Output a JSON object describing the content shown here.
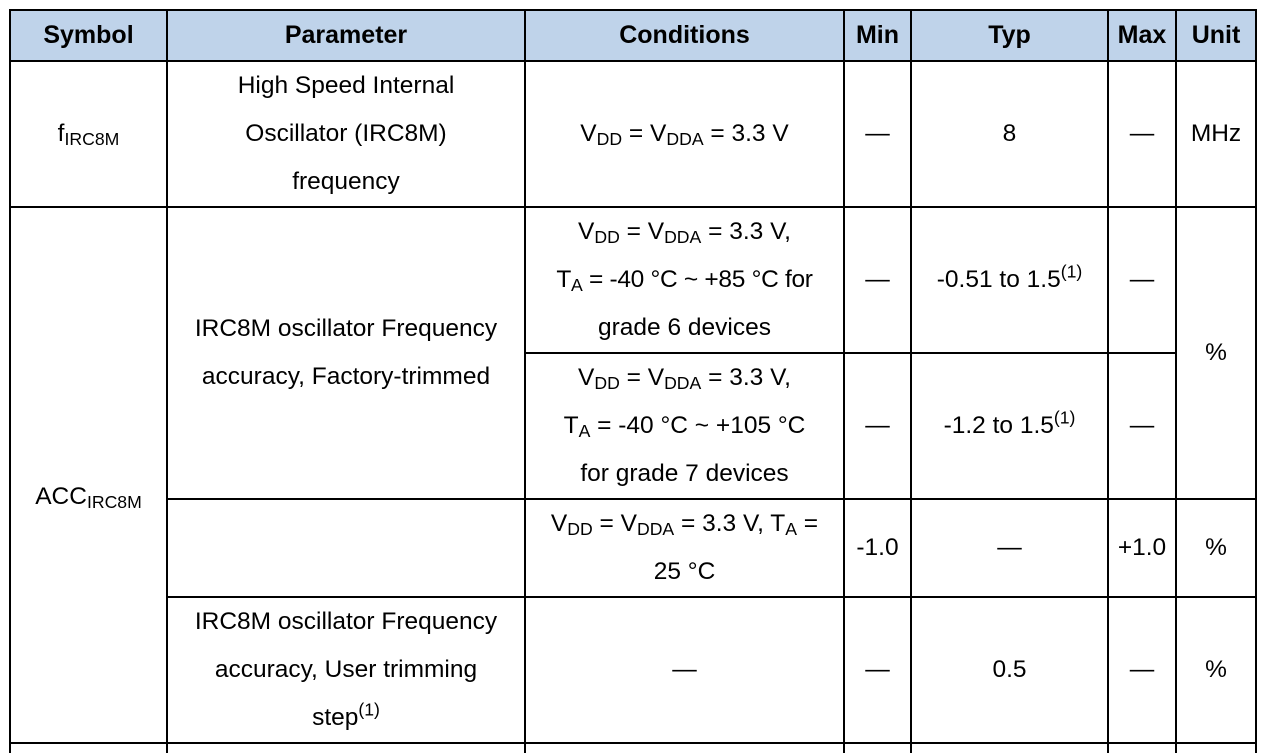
{
  "table": {
    "headers": {
      "symbol": "Symbol",
      "parameter": "Parameter",
      "conditions": "Conditions",
      "min": "Min",
      "typ": "Typ",
      "max": "Max",
      "unit": "Unit"
    },
    "row1": {
      "symbol_main": "f",
      "symbol_sub": "IRC8M",
      "param_l1": "High Speed Internal",
      "param_l2": "Oscillator (IRC8M)",
      "param_l3": "frequency",
      "cond": {
        "v1": "V",
        "s1": "DD",
        "eq": " = V",
        "s2": "DDA",
        "tail": " = 3.3 V"
      },
      "min": "—",
      "typ": "8",
      "max": "—",
      "unit": "MHz"
    },
    "row2": {
      "symbol_main": "ACC",
      "symbol_sub": "IRC8M",
      "param_l1": "IRC8M oscillator Frequency",
      "param_l2": "accuracy, Factory-trimmed",
      "unit_shared": "%",
      "sub_a": {
        "cond": {
          "v1": "V",
          "s1": "DD",
          "eq": " = V",
          "s2": "DDA",
          "tail": " = 3.3 V,",
          "t": "T",
          "ts": "A",
          "l2": " = -40 °C ~ +85 °C for",
          "l3": "grade 6 devices"
        },
        "min": "—",
        "typ": "-0.51 to 1.5",
        "typ_note": "(1)",
        "max": "—"
      },
      "sub_b": {
        "cond": {
          "v1": "V",
          "s1": "DD",
          "eq": " = V",
          "s2": "DDA",
          "tail": " = 3.3 V,",
          "t": "T",
          "ts": "A",
          "l2": " = -40 °C ~ +105 °C",
          "l3": "for grade 7 devices"
        },
        "min": "—",
        "typ": "-1.2 to 1.5",
        "typ_note": "(1)",
        "max": "—"
      },
      "sub_c": {
        "cond": {
          "v1": "V",
          "s1": "DD",
          "eq": " = V",
          "s2": "DDA",
          "tail": " = 3.3 V, T",
          "ts": "A",
          "eq2": " =",
          "l2": "25 °C"
        },
        "min": "-1.0",
        "typ": "—",
        "max": "+1.0",
        "unit": "%"
      }
    },
    "row3": {
      "param_l1": "IRC8M oscillator Frequency",
      "param_l2": "accuracy, User trimming",
      "param_l3": "step",
      "param_note": "(1)",
      "cond": "—",
      "min": "—",
      "typ": "0.5",
      "max": "—",
      "unit": "%"
    }
  }
}
